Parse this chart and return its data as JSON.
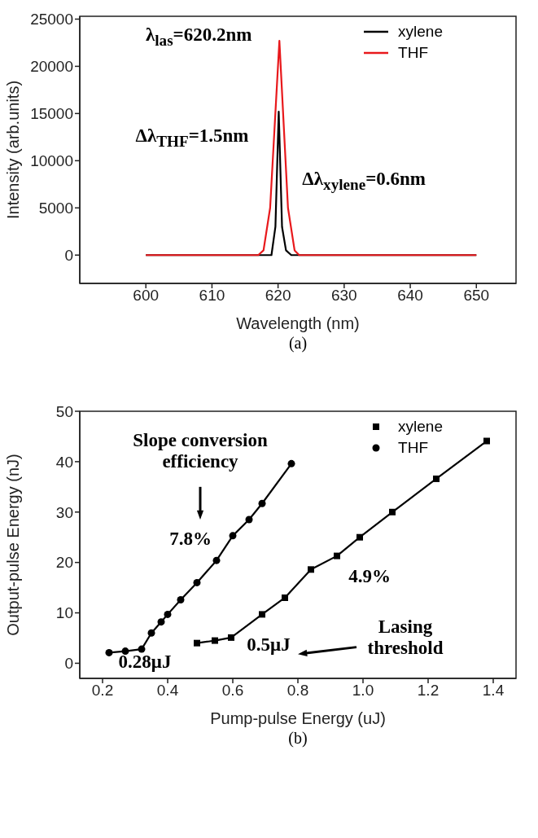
{
  "chart_data": [
    {
      "type": "line",
      "xlabel": "Wavelength (nm)",
      "ylabel": "Intensity (arb.units)",
      "xlim": [
        590,
        656
      ],
      "xticks": [
        600,
        610,
        620,
        630,
        640,
        650
      ],
      "ylim": [
        -3000,
        25300
      ],
      "yticks": [
        0,
        5000,
        10000,
        15000,
        20000,
        25000
      ],
      "legend": "top right",
      "grid": false,
      "series": [
        {
          "name": "xylene",
          "color": "#000000",
          "marker": "none",
          "x": [
            600,
            617,
            619,
            619.6,
            620.1,
            620.6,
            621.2,
            622,
            650
          ],
          "values": [
            0,
            0,
            0,
            3000,
            15200,
            3000,
            500,
            0,
            0
          ]
        },
        {
          "name": "THF",
          "color": "#e8191c",
          "marker": "none",
          "x": [
            600,
            617,
            617.8,
            618.8,
            620.2,
            621.5,
            622.5,
            623.2,
            650
          ],
          "values": [
            0,
            0,
            500,
            5000,
            22700,
            5000,
            500,
            0,
            0
          ]
        }
      ],
      "annotations": [
        "λ$_{las}$=620.2nm",
        "Δλ$_{THF}$=1.5nm",
        "Δλ$_{xylene}$=0.6nm",
        "(a)"
      ]
    },
    {
      "type": "line",
      "xlabel": "Pump-pulse Energy (uJ)",
      "ylabel": "Output-pulse Energy (nJ)",
      "xlim": [
        0.13,
        1.47
      ],
      "xticks": [
        0.2,
        0.4,
        0.6,
        0.8,
        {
          "value": 1,
          "label": "1.0"
        },
        1.2,
        1.4
      ],
      "ylim": [
        -3,
        50
      ],
      "yticks": [
        0,
        10,
        20,
        30,
        40,
        50
      ],
      "legend": "top right",
      "grid": false,
      "series": [
        {
          "name": "xylene",
          "color": "#000000",
          "marker": "square",
          "x": [
            0.49,
            0.545,
            0.595,
            0.69,
            0.76,
            0.84,
            0.92,
            0.99,
            1.09,
            1.225,
            1.38
          ],
          "values": [
            4.0,
            4.5,
            5.1,
            9.7,
            13.0,
            18.6,
            21.3,
            25.0,
            30.0,
            36.6,
            44.1
          ]
        },
        {
          "name": "THF",
          "color": "#000000",
          "marker": "circle",
          "x": [
            0.22,
            0.27,
            0.32,
            0.35,
            0.38,
            0.4,
            0.44,
            0.49,
            0.55,
            0.6,
            0.65,
            0.69,
            0.78
          ],
          "values": [
            2.1,
            2.4,
            2.8,
            6.0,
            8.2,
            9.7,
            12.6,
            16.0,
            20.4,
            25.3,
            28.5,
            31.7,
            39.6
          ]
        }
      ],
      "annotations": [
        "Slope conversion efficiency",
        "7.8%",
        "4.9%",
        "0.28μJ",
        "0.5μJ",
        "Lasing threshold",
        "(b)"
      ]
    }
  ]
}
